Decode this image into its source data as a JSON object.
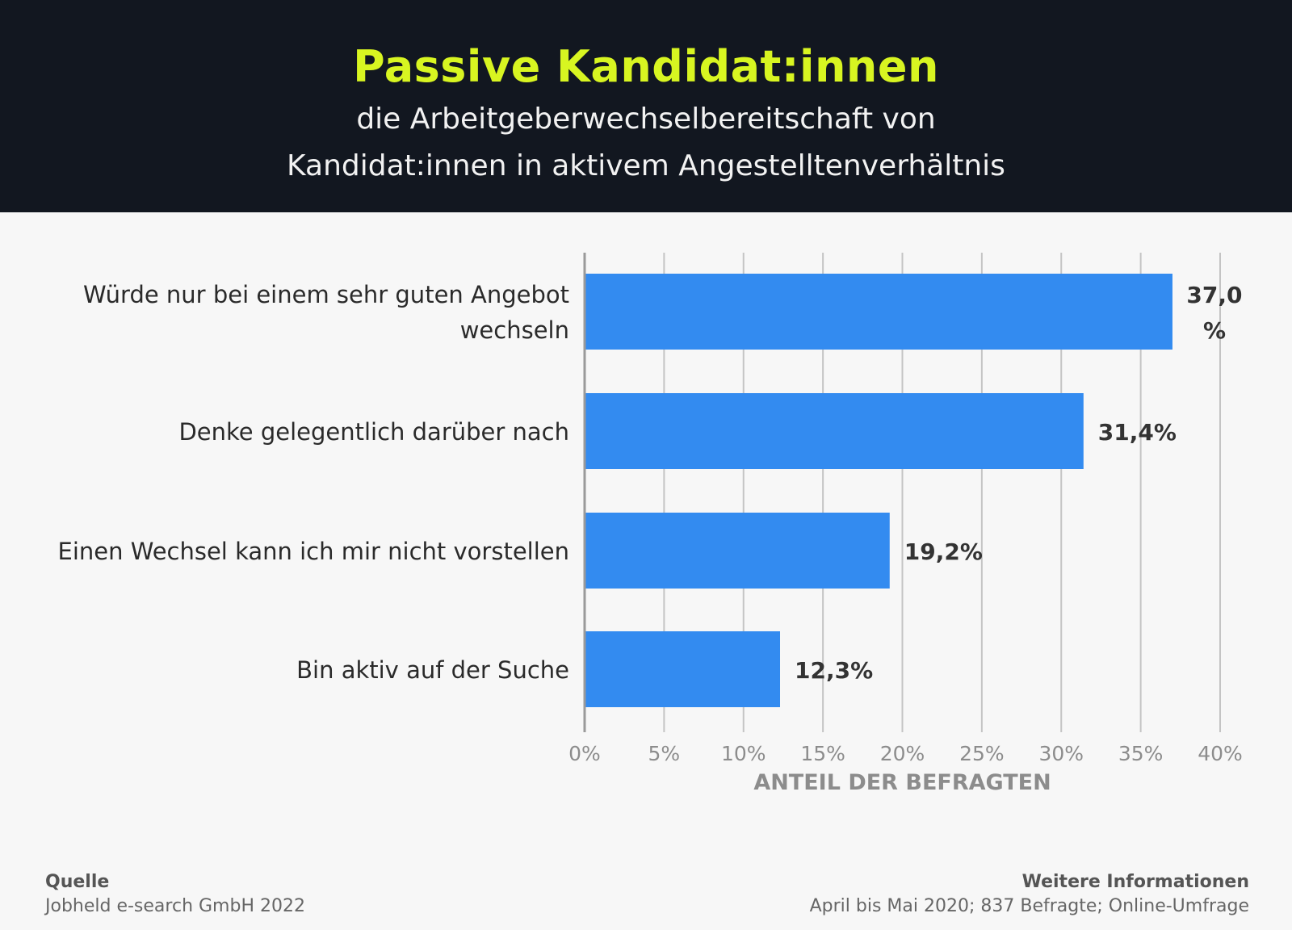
{
  "header": {
    "title": "Passive Kandidat:innen",
    "subtitle_line1": "die Arbeitgeberwechselbereitschaft von",
    "subtitle_line2": "Kandidat:innen in aktivem Angestelltenverhältnis"
  },
  "colors": {
    "header_bg": "#121720",
    "title": "#d8f521",
    "bar": "#338bf0",
    "background": "#f7f7f7"
  },
  "chart_data": {
    "type": "bar",
    "orientation": "horizontal",
    "categories": [
      [
        "Würde nur bei einem sehr guten Angebot",
        "wechseln"
      ],
      [
        "Denke gelegentlich darüber nach"
      ],
      [
        "Einen Wechsel kann ich mir nicht vorstellen"
      ],
      [
        "Bin aktiv auf der Suche"
      ]
    ],
    "values": [
      37.0,
      31.4,
      19.2,
      12.3
    ],
    "value_labels": [
      [
        "37,0",
        "%"
      ],
      [
        "31,4%"
      ],
      [
        "19,2%"
      ],
      [
        "12,3%"
      ]
    ],
    "xlim": [
      0,
      40
    ],
    "xticks": [
      0,
      5,
      10,
      15,
      20,
      25,
      30,
      35,
      40
    ],
    "xtick_labels": [
      "0%",
      "5%",
      "10%",
      "15%",
      "20%",
      "25%",
      "30%",
      "35%",
      "40%"
    ],
    "xlabel": "ANTEIL DER BEFRAGTEN",
    "grid": true
  },
  "footer": {
    "source_label": "Quelle",
    "source_text": "Jobheld e-search GmbH 2022",
    "info_label": "Weitere Informationen",
    "info_text": "April bis Mai 2020; 837 Befragte; Online-Umfrage"
  }
}
